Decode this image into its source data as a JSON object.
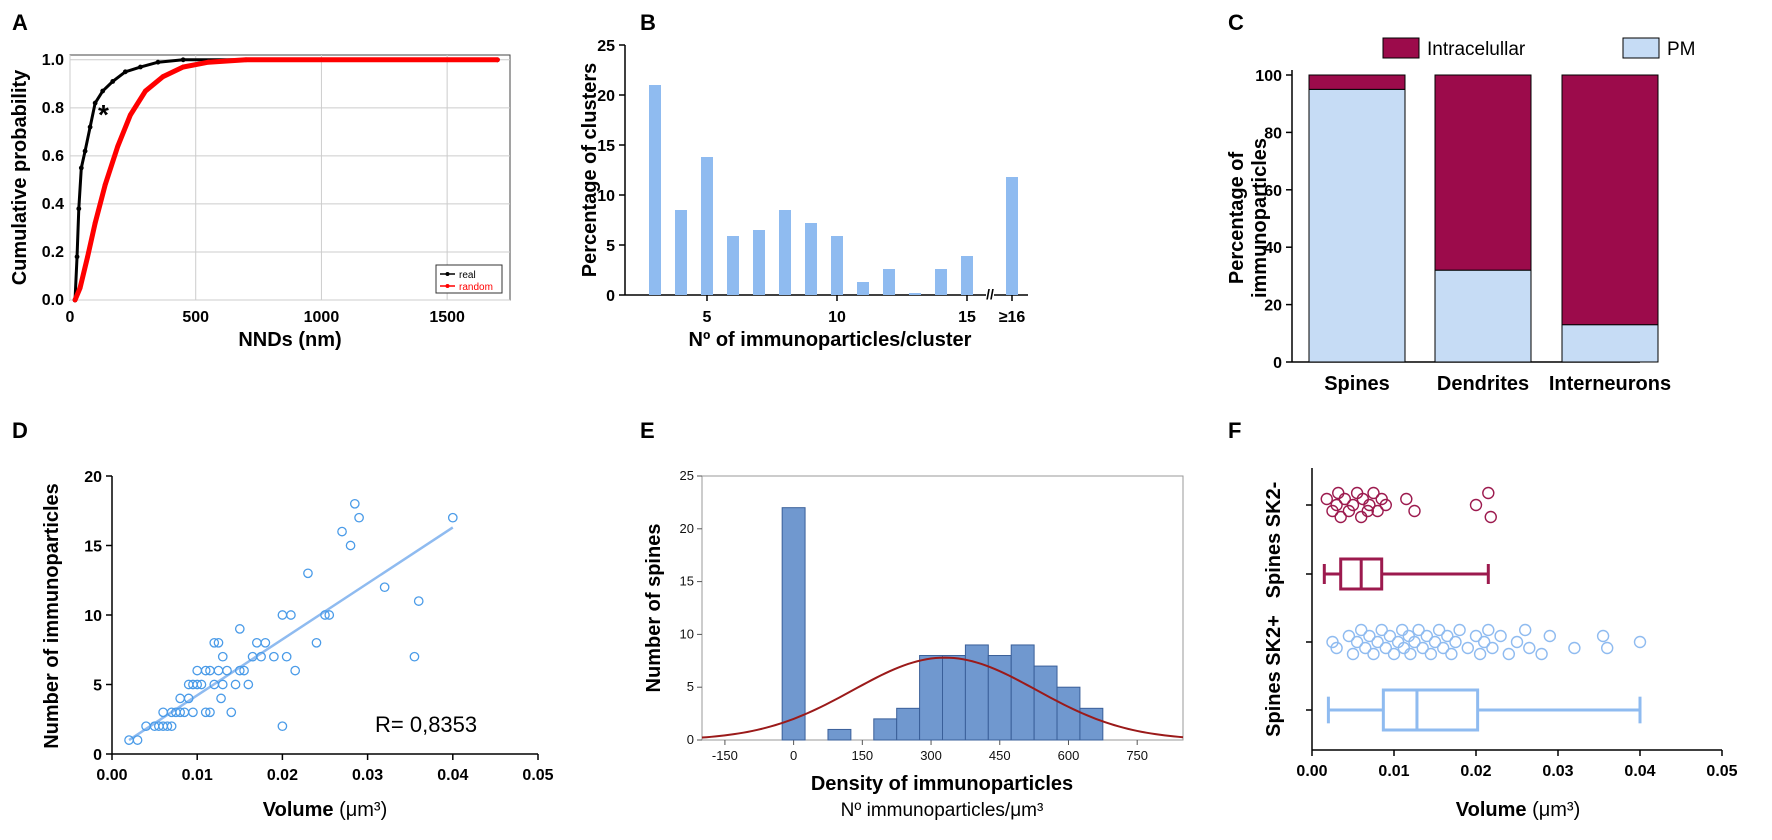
{
  "colors": {
    "real": "#000000",
    "random": "#ff0000",
    "bar_light": "#8fbbf0",
    "pm_fill": "#c6dcf5",
    "intra_fill": "#9c0b4b",
    "hist_fill": "#7098cf",
    "curve": "#9b1a1a",
    "maroon": "#9c1a4e",
    "light_blue": "#8fbbf0",
    "grid": "#cccccc"
  },
  "chart_data": [
    {
      "panel": "A",
      "type": "line",
      "xlabel": "NNDs (nm)",
      "ylabel": "Cumulative probability",
      "xlim": [
        0,
        1750
      ],
      "ylim": [
        0,
        1.02
      ],
      "xticks": [
        0,
        500,
        1000,
        1500
      ],
      "yticks": [
        0.0,
        0.2,
        0.4,
        0.6,
        0.8,
        1.0
      ],
      "annotation": "*",
      "series": [
        {
          "name": "real",
          "points": [
            [
              20,
              0
            ],
            [
              28,
              0.18
            ],
            [
              35,
              0.38
            ],
            [
              45,
              0.55
            ],
            [
              60,
              0.62
            ],
            [
              80,
              0.72
            ],
            [
              100,
              0.82
            ],
            [
              130,
              0.87
            ],
            [
              170,
              0.91
            ],
            [
              220,
              0.95
            ],
            [
              280,
              0.97
            ],
            [
              350,
              0.99
            ],
            [
              450,
              1.0
            ],
            [
              1700,
              1.0
            ]
          ]
        },
        {
          "name": "random",
          "points": [
            [
              20,
              0
            ],
            [
              40,
              0.05
            ],
            [
              70,
              0.18
            ],
            [
              100,
              0.32
            ],
            [
              140,
              0.48
            ],
            [
              190,
              0.64
            ],
            [
              240,
              0.77
            ],
            [
              300,
              0.87
            ],
            [
              370,
              0.93
            ],
            [
              450,
              0.97
            ],
            [
              550,
              0.99
            ],
            [
              700,
              1.0
            ],
            [
              1700,
              1.0
            ]
          ]
        }
      ],
      "legend": [
        "real",
        "random"
      ]
    },
    {
      "panel": "B",
      "type": "bar",
      "xlabel": "Nº of immunoparticles/cluster",
      "ylabel": "Percentage of clusters",
      "ylim": [
        0,
        25
      ],
      "yticks": [
        0,
        5,
        10,
        15,
        20,
        25
      ],
      "xtick_labels": [
        "5",
        "10",
        "15",
        "≥16"
      ],
      "categories": [
        "3",
        "4",
        "5",
        "6",
        "7",
        "8",
        "9",
        "10",
        "11",
        "12",
        "13",
        "14",
        "15",
        "≥16"
      ],
      "values": [
        21.0,
        8.5,
        13.8,
        5.9,
        6.5,
        8.5,
        7.2,
        5.9,
        1.3,
        2.6,
        0.2,
        2.6,
        3.9,
        11.8
      ]
    },
    {
      "panel": "C",
      "type": "bar",
      "stacked": true,
      "ylabel": "Percentage of immunoparticles",
      "ylim": [
        0,
        100
      ],
      "yticks": [
        0,
        20,
        40,
        60,
        80,
        100
      ],
      "categories": [
        "Spines",
        "Dendrites",
        "Interneurons"
      ],
      "series": [
        {
          "name": "PM",
          "values": [
            95,
            32,
            13
          ]
        },
        {
          "name": "Intracelullar",
          "values": [
            5,
            68,
            87
          ]
        }
      ],
      "legend": [
        "Intracelullar",
        "PM"
      ]
    },
    {
      "panel": "D",
      "type": "scatter",
      "xlabel": "Volume",
      "xlabel_unit": "(μm³)",
      "ylabel": "Number of immunoparticles",
      "xlim": [
        0,
        0.05
      ],
      "ylim": [
        0,
        20
      ],
      "xticks": [
        "0.00",
        "0.01",
        "0.02",
        "0.03",
        "0.04",
        "0.05"
      ],
      "yticks": [
        0,
        5,
        10,
        15,
        20
      ],
      "annotation": "R= 0,8353",
      "fit": [
        [
          0.002,
          1.0
        ],
        [
          0.04,
          16.3
        ]
      ],
      "points": [
        [
          0.002,
          1
        ],
        [
          0.003,
          1
        ],
        [
          0.004,
          2
        ],
        [
          0.005,
          2
        ],
        [
          0.0055,
          2
        ],
        [
          0.006,
          2
        ],
        [
          0.006,
          3
        ],
        [
          0.0065,
          2
        ],
        [
          0.007,
          3
        ],
        [
          0.007,
          2
        ],
        [
          0.0075,
          3
        ],
        [
          0.008,
          3
        ],
        [
          0.008,
          4
        ],
        [
          0.0085,
          3
        ],
        [
          0.009,
          5
        ],
        [
          0.009,
          4
        ],
        [
          0.0095,
          3
        ],
        [
          0.0095,
          5
        ],
        [
          0.01,
          6
        ],
        [
          0.01,
          5
        ],
        [
          0.0105,
          5
        ],
        [
          0.011,
          6
        ],
        [
          0.011,
          3
        ],
        [
          0.0115,
          3
        ],
        [
          0.0115,
          6
        ],
        [
          0.012,
          8
        ],
        [
          0.012,
          5
        ],
        [
          0.0125,
          8
        ],
        [
          0.0125,
          6
        ],
        [
          0.0128,
          4
        ],
        [
          0.013,
          5
        ],
        [
          0.013,
          7
        ],
        [
          0.0135,
          6
        ],
        [
          0.014,
          3
        ],
        [
          0.0145,
          5
        ],
        [
          0.015,
          6
        ],
        [
          0.015,
          9
        ],
        [
          0.0155,
          6
        ],
        [
          0.016,
          5
        ],
        [
          0.0165,
          7
        ],
        [
          0.017,
          8
        ],
        [
          0.0175,
          7
        ],
        [
          0.018,
          8
        ],
        [
          0.019,
          7
        ],
        [
          0.02,
          10
        ],
        [
          0.0205,
          7
        ],
        [
          0.021,
          10
        ],
        [
          0.0215,
          6
        ],
        [
          0.02,
          2
        ],
        [
          0.023,
          13
        ],
        [
          0.024,
          8
        ],
        [
          0.025,
          10
        ],
        [
          0.0255,
          10
        ],
        [
          0.027,
          16
        ],
        [
          0.028,
          15
        ],
        [
          0.0285,
          18
        ],
        [
          0.029,
          17
        ],
        [
          0.032,
          12
        ],
        [
          0.0355,
          7
        ],
        [
          0.036,
          11
        ],
        [
          0.04,
          17
        ]
      ]
    },
    {
      "panel": "E",
      "type": "bar",
      "subtype": "histogram",
      "xlabel": "Density of immunoparticles",
      "xlabel2": "Nº immunoparticles/μm³",
      "ylabel": "Number of spines",
      "xlim": [
        -200,
        850
      ],
      "ylim": [
        0,
        25
      ],
      "xticks": [
        -150,
        0,
        150,
        300,
        450,
        600,
        750
      ],
      "yticks": [
        0,
        5,
        10,
        15,
        20,
        25
      ],
      "bin_width": 50,
      "bins": [
        [
          0,
          22
        ],
        [
          50,
          0
        ],
        [
          100,
          1
        ],
        [
          150,
          0
        ],
        [
          200,
          2
        ],
        [
          250,
          3
        ],
        [
          300,
          8
        ],
        [
          350,
          8
        ],
        [
          400,
          9
        ],
        [
          450,
          8
        ],
        [
          500,
          9
        ],
        [
          550,
          7
        ],
        [
          600,
          5
        ],
        [
          650,
          3
        ]
      ],
      "normal_fit": {
        "mean": 330,
        "sd": 200,
        "peak": 7.8
      }
    },
    {
      "panel": "F",
      "type": "scatter",
      "subtype": "box-and-points",
      "xlabel": "Volume",
      "xlabel_unit": "(μm³)",
      "xlim": [
        0,
        0.05
      ],
      "xticks": [
        "0.00",
        "0.01",
        "0.02",
        "0.03",
        "0.04",
        "0.05"
      ],
      "groups": [
        {
          "name": "Spines SK2-",
          "box": {
            "min": 0.0015,
            "q1": 0.0035,
            "median": 0.006,
            "q3": 0.0085,
            "max": 0.0215
          },
          "points": [
            [
              0.0018,
              -1
            ],
            [
              0.0025,
              1
            ],
            [
              0.003,
              0
            ],
            [
              0.0032,
              -2
            ],
            [
              0.0035,
              2
            ],
            [
              0.004,
              -1
            ],
            [
              0.0045,
              1
            ],
            [
              0.005,
              0
            ],
            [
              0.0055,
              -2
            ],
            [
              0.006,
              2
            ],
            [
              0.0062,
              -1
            ],
            [
              0.0068,
              1
            ],
            [
              0.007,
              0
            ],
            [
              0.0075,
              -2
            ],
            [
              0.008,
              1
            ],
            [
              0.0085,
              -1
            ],
            [
              0.009,
              0
            ],
            [
              0.0115,
              -1
            ],
            [
              0.0125,
              1
            ],
            [
              0.02,
              0
            ],
            [
              0.0215,
              -2
            ],
            [
              0.0218,
              2
            ]
          ]
        },
        {
          "name": "Spines SK2+",
          "box": {
            "min": 0.002,
            "q1": 0.0087,
            "median": 0.0128,
            "q3": 0.0202,
            "max": 0.04
          },
          "points": [
            [
              0.0025,
              0
            ],
            [
              0.003,
              1
            ],
            [
              0.0045,
              -1
            ],
            [
              0.005,
              2
            ],
            [
              0.0055,
              0
            ],
            [
              0.006,
              -2
            ],
            [
              0.0065,
              1
            ],
            [
              0.007,
              -1
            ],
            [
              0.0075,
              2
            ],
            [
              0.008,
              0
            ],
            [
              0.0085,
              -2
            ],
            [
              0.009,
              1
            ],
            [
              0.0095,
              -1
            ],
            [
              0.01,
              2
            ],
            [
              0.0105,
              0
            ],
            [
              0.011,
              -2
            ],
            [
              0.0112,
              1
            ],
            [
              0.0118,
              -1
            ],
            [
              0.012,
              2
            ],
            [
              0.0125,
              0
            ],
            [
              0.013,
              -2
            ],
            [
              0.0135,
              1
            ],
            [
              0.014,
              -1
            ],
            [
              0.0145,
              2
            ],
            [
              0.015,
              0
            ],
            [
              0.0155,
              -2
            ],
            [
              0.016,
              1
            ],
            [
              0.0165,
              -1
            ],
            [
              0.017,
              2
            ],
            [
              0.0175,
              0
            ],
            [
              0.018,
              -2
            ],
            [
              0.019,
              1
            ],
            [
              0.02,
              -1
            ],
            [
              0.0205,
              2
            ],
            [
              0.021,
              0
            ],
            [
              0.0215,
              -2
            ],
            [
              0.022,
              1
            ],
            [
              0.023,
              -1
            ],
            [
              0.024,
              2
            ],
            [
              0.025,
              0
            ],
            [
              0.026,
              -2
            ],
            [
              0.0265,
              1
            ],
            [
              0.028,
              2
            ],
            [
              0.029,
              -1
            ],
            [
              0.032,
              1
            ],
            [
              0.0355,
              -1
            ],
            [
              0.036,
              1
            ],
            [
              0.04,
              0
            ]
          ]
        }
      ]
    }
  ]
}
